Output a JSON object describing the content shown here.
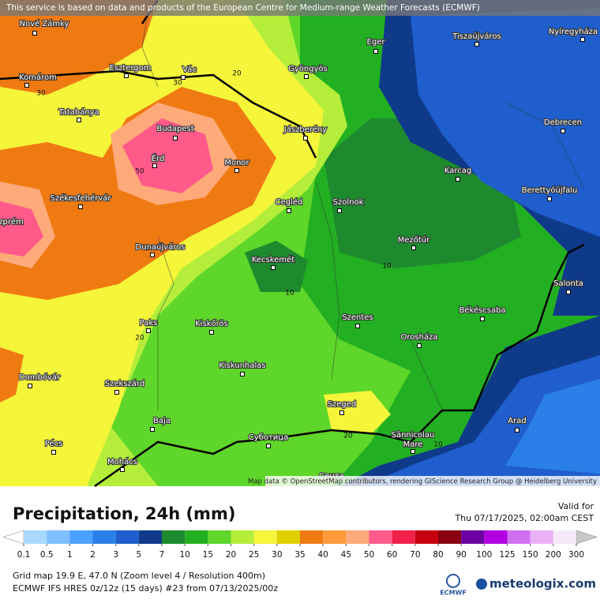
{
  "notice": "This service is based on data and products of the European Centre for Medium-range Weather Forecasts (ECMWF)",
  "map": {
    "cities": [
      "Nové Zámky",
      "Komárom",
      "Esztergom",
      "Vác",
      "Eger",
      "Gyöngyös",
      "Tiszaújváros",
      "Nyíregyháza",
      "Tatabánya",
      "Budapest",
      "Érd",
      "Monor",
      "Jászberény",
      "Debrecen",
      "Karcag",
      "Székesfehérvár",
      "Cegléd",
      "Szolnok",
      "Berettyóújfalu",
      "zprém",
      "Dunaújváros",
      "Mezőtúr",
      "Kecskemét",
      "Salonta",
      "Békéscsaba",
      "Paks",
      "Kiskőrös",
      "Szentes",
      "Orosháza",
      "Kiskunhalas",
      "Dombóvár",
      "Szekszárd",
      "Szeged",
      "Arad",
      "Baja",
      "Pécs",
      "Суботица",
      "Sânnicolau",
      "Mare",
      "Mohács",
      "Сента"
    ],
    "contour_labels": [
      "30",
      "30",
      "20",
      "50",
      "10",
      "10",
      "20",
      "20",
      "10"
    ],
    "attribution": "Map data © OpenStreetMap contributors, rendering GIScience Research Group @ Heidelberg University"
  },
  "legend": {
    "title": "Precipitation, 24h (mm)",
    "valid_label": "Valid for",
    "valid_time": "Thu 07/17/2025, 02:00am CEST",
    "ticks": [
      0.1,
      0.5,
      1,
      2,
      3,
      5,
      7,
      10,
      15,
      20,
      25,
      30,
      35,
      40,
      45,
      50,
      60,
      70,
      80,
      90,
      100,
      125,
      150,
      200,
      300
    ],
    "colors": [
      "#a9d8ff",
      "#7ec0ff",
      "#4aa0ff",
      "#2b7fe8",
      "#1f5ecc",
      "#0f3a8a",
      "#1e8a2e",
      "#22b022",
      "#5fd62a",
      "#b4ee3a",
      "#f5f53a",
      "#e0d000",
      "#f07a12",
      "#ff9a3a",
      "#ffaa7a",
      "#ff5a8a",
      "#f0204a",
      "#c80010",
      "#8a0010",
      "#6a00a0",
      "#b000e0",
      "#d070f0",
      "#eab0f5",
      "#f5e8f8"
    ],
    "under_color": "#ffffff",
    "over_color": "#c8c8c8"
  },
  "footer": {
    "line1": "Grid map 19.9 E, 47.0 N (Zoom level 4 / Resolution 400m)",
    "line2": "ECMWF IFS HRES 0z/12z (15 days) #23 from 07/13/2025/00z",
    "ecmwf": "ECMWF",
    "brand": "meteologix.com"
  }
}
